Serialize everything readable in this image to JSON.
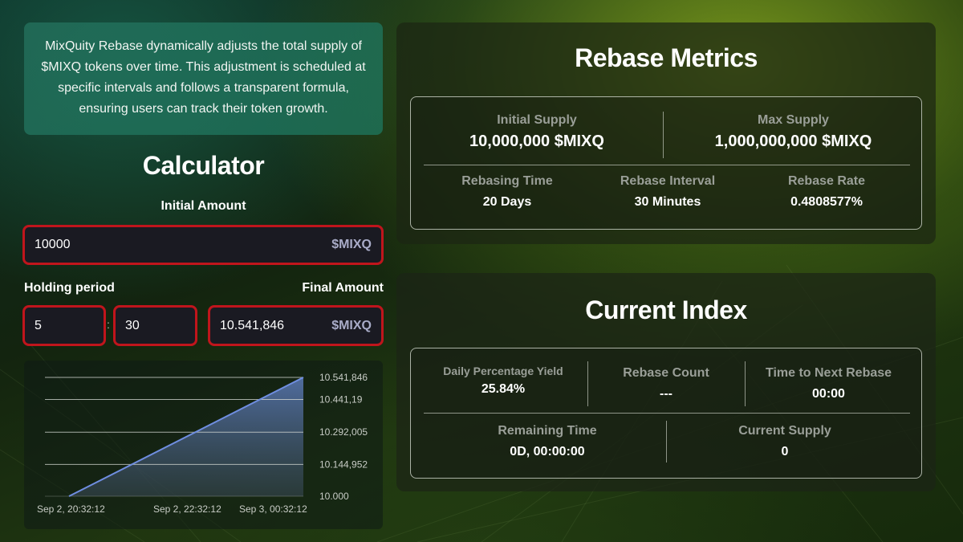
{
  "description": "MixQuity Rebase dynamically adjusts the total supply of $MIXQ tokens over time. This adjustment is scheduled at specific intervals and follows a transparent formula, ensuring users can track their token growth.",
  "calculator": {
    "title": "Calculator",
    "initial_amount_label": "Initial Amount",
    "initial_amount_value": "10000",
    "unit": "$MIXQ",
    "holding_period_label": "Holding period",
    "holding_days": "5",
    "holding_separator": ":",
    "holding_minutes": "30",
    "final_amount_label": "Final Amount",
    "final_amount_value": "10.541,846"
  },
  "chart_data": {
    "type": "area",
    "x_tick_labels": [
      "Sep 2, 20:32:12",
      "Sep 2, 22:32:12",
      "Sep 3, 00:32:12"
    ],
    "y_tick_labels": [
      "10.541,846",
      "10.441,19",
      "10.292,005",
      "10.144,952",
      "10.000"
    ],
    "y_ticks": [
      10541.846,
      10441.19,
      10292.005,
      10144.952,
      10000
    ],
    "ylim": [
      10000,
      10541.846
    ],
    "x": [
      "Sep 2, 20:32:12",
      "Sep 3, 02:02:12"
    ],
    "values": [
      10000,
      10541.846
    ],
    "grid": true,
    "colors": {
      "line": "#6f8ee0",
      "fill_top": "#5b7ab8",
      "fill_bottom": "#3a4a58",
      "grid": "#d8dcd6"
    }
  },
  "metrics": {
    "title": "Rebase Metrics",
    "initial_supply_label": "Initial Supply",
    "initial_supply_value": "10,000,000 $MIXQ",
    "max_supply_label": "Max Supply",
    "max_supply_value": "1,000,000,000 $MIXQ",
    "rebasing_time_label": "Rebasing Time",
    "rebasing_time_value": "20 Days",
    "rebase_interval_label": "Rebase Interval",
    "rebase_interval_value": "30 Minutes",
    "rebase_rate_label": "Rebase Rate",
    "rebase_rate_value": "0.4808577%"
  },
  "current_index": {
    "title": "Current Index",
    "dpy_label": "Daily Percentage Yield",
    "dpy_value": "25.84%",
    "rebase_count_label": "Rebase Count",
    "rebase_count_value": "---",
    "next_rebase_label": "Time to Next Rebase",
    "next_rebase_value": "00:00",
    "remaining_time_label": "Remaining Time",
    "remaining_time_value": "0D, 00:00:00",
    "current_supply_label": "Current Supply",
    "current_supply_value": "0"
  },
  "colors": {
    "field_border": "#c0151c",
    "field_bg": "#1a1a22",
    "desc_bg": "#22705a",
    "muted_label": "#9a9f98",
    "unit_text": "#a9acc8"
  }
}
